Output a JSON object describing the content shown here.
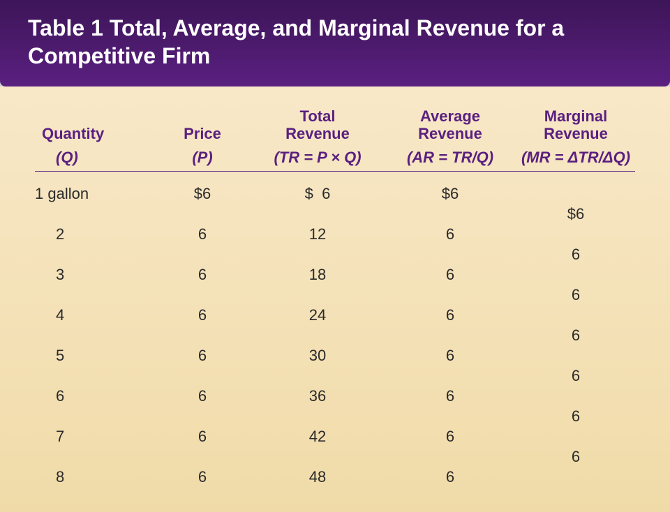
{
  "header": {
    "title_line1": "Table 1 Total, Average, and Marginal Revenue for a",
    "title_line2": "Competitive Firm"
  },
  "columns": {
    "c1": {
      "label": "Quantity",
      "sub": "(Q)"
    },
    "c2": {
      "label": "Price",
      "sub": "(P)"
    },
    "c3": {
      "label_l1": "Total",
      "label_l2": "Revenue",
      "sub": "(TR = P × Q)"
    },
    "c4": {
      "label_l1": "Average",
      "label_l2": "Revenue",
      "sub": "(AR = TR/Q)"
    },
    "c5": {
      "label_l1": "Marginal",
      "label_l2": "Revenue",
      "sub": "(MR = ΔTR/ΔQ)"
    }
  },
  "rows": [
    {
      "q": "1 gallon",
      "p": "$6",
      "tr": "$  6",
      "ar": "$6"
    },
    {
      "q": "2",
      "p": "6",
      "tr": "12",
      "ar": "6"
    },
    {
      "q": "3",
      "p": "6",
      "tr": "18",
      "ar": "6"
    },
    {
      "q": "4",
      "p": "6",
      "tr": "24",
      "ar": "6"
    },
    {
      "q": "5",
      "p": "6",
      "tr": "30",
      "ar": "6"
    },
    {
      "q": "6",
      "p": "6",
      "tr": "36",
      "ar": "6"
    },
    {
      "q": "7",
      "p": "6",
      "tr": "42",
      "ar": "6"
    },
    {
      "q": "8",
      "p": "6",
      "tr": "48",
      "ar": "6"
    }
  ],
  "mr": [
    "$6",
    "6",
    "6",
    "6",
    "6",
    "6",
    "6"
  ],
  "colors": {
    "header_bg": "#4a1a6a",
    "header_text": "#ffffff",
    "content_bg_top": "#f8e8c8",
    "content_bg_bottom": "#f0dba8",
    "column_header_text": "#5a2080",
    "data_text": "#2a2a2a",
    "divider": "#5a2080"
  },
  "fonts": {
    "title_size": 32,
    "header_size": 22,
    "data_size": 22
  }
}
